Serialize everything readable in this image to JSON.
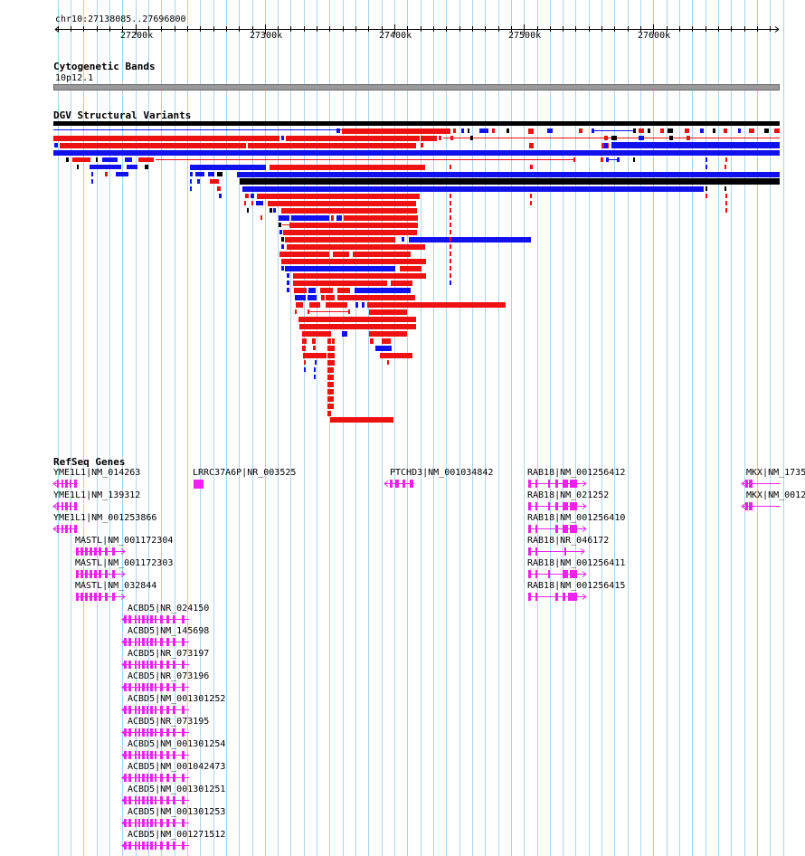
{
  "locus": "chr10:27138085..27696800",
  "ruler": {
    "ticks": [
      {
        "label": "27200k",
        "pos": 27200000
      },
      {
        "label": "27300k",
        "pos": 27300000
      },
      {
        "label": "27400k",
        "pos": 27400000
      },
      {
        "label": "27500k",
        "pos": 27500000
      },
      {
        "label": "27600k",
        "pos": 27600000
      }
    ]
  },
  "tracks": {
    "cytoband": {
      "title": "Cytogenetic Bands",
      "band_label": "10p12.1",
      "band_color": "#999999"
    },
    "dgv": {
      "title": "DGV Structural Variants",
      "colors": {
        "loss": "#ee1111",
        "gain": "#1111ee",
        "complex": "#000000"
      }
    },
    "refseq": {
      "title": "RefSeq Genes",
      "color": "#ee22ee",
      "genes": [
        {
          "label": "YME1L1|NM_014263"
        },
        {
          "label": "LRRC37A6P|NR_003525"
        },
        {
          "label": "PTCHD3|NM_001034842"
        },
        {
          "label": "RAB18|NM_001256412"
        },
        {
          "label": "MKX|NM_1735"
        },
        {
          "label": "YME1L1|NM_139312"
        },
        {
          "label": "RAB18|NM_021252"
        },
        {
          "label": "MKX|NM_0012"
        },
        {
          "label": "YME1L1|NM_001253866"
        },
        {
          "label": "RAB18|NM_001256410"
        },
        {
          "label": "MASTL|NM_001172304"
        },
        {
          "label": "RAB18|NR_046172"
        },
        {
          "label": "MASTL|NM_001172303"
        },
        {
          "label": "RAB18|NM_001256411"
        },
        {
          "label": "MASTL|NM_032844"
        },
        {
          "label": "RAB18|NM_001256415"
        },
        {
          "label": "ACBD5|NR_024150"
        },
        {
          "label": "ACBD5|NM_145698"
        },
        {
          "label": "ACBD5|NR_073197"
        },
        {
          "label": "ACBD5|NR_073196"
        },
        {
          "label": "ACBD5|NM_001301252"
        },
        {
          "label": "ACBD5|NR_073195"
        },
        {
          "label": "ACBD5|NM_001301254"
        },
        {
          "label": "ACBD5|NM_001042473"
        },
        {
          "label": "ACBD5|NM_001301251"
        },
        {
          "label": "ACBD5|NM_001301253"
        },
        {
          "label": "ACBD5|NM_001271512"
        }
      ]
    }
  },
  "grid_color": "#aad4ee"
}
